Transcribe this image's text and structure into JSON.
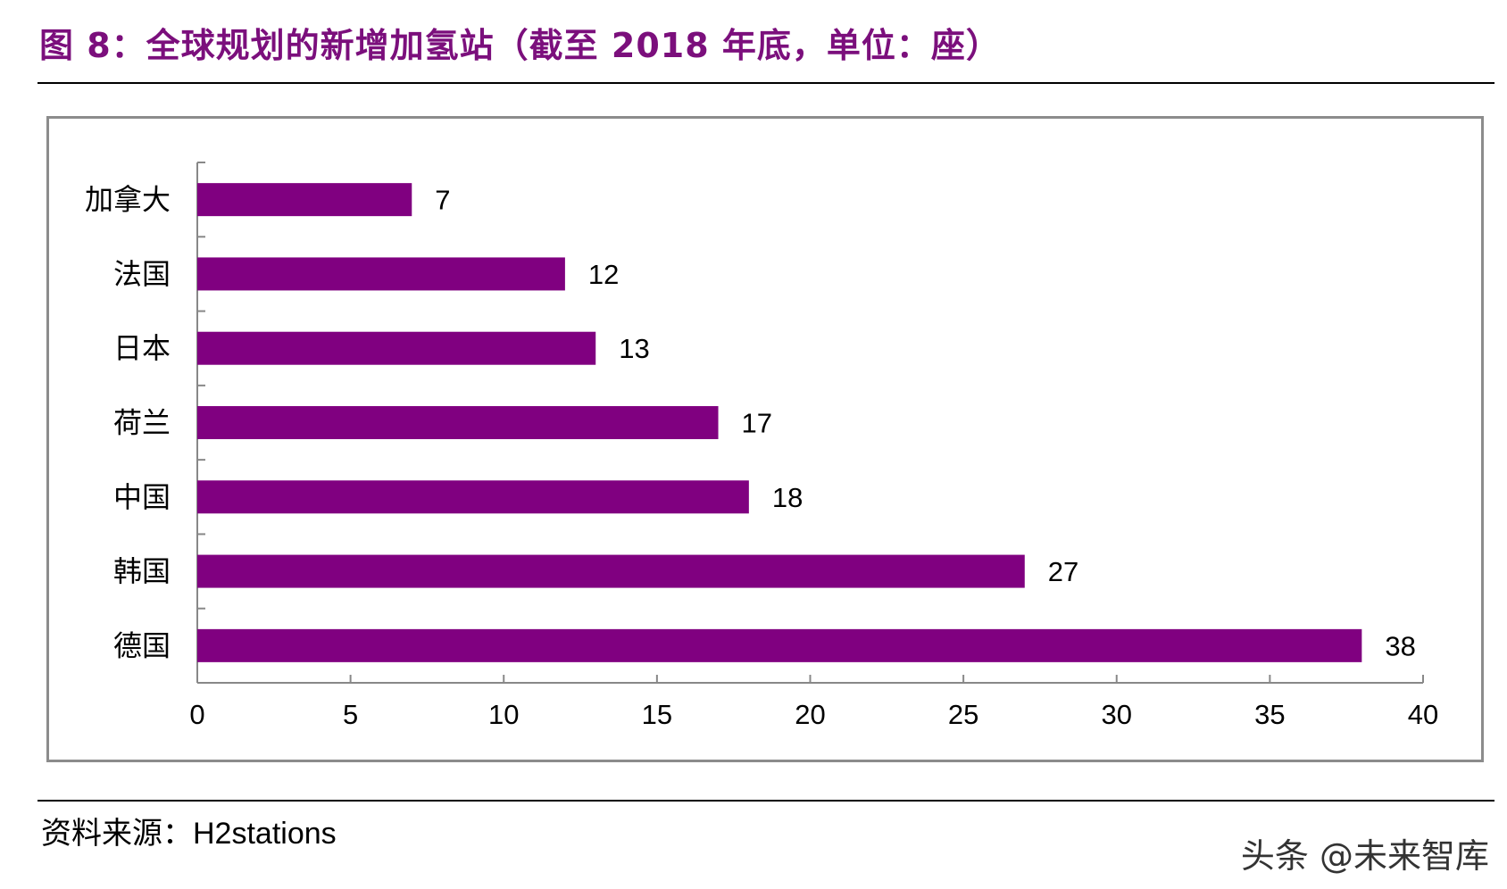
{
  "header": {
    "figure_title": "图 8：全球规划的新增加氢站（截至 2018 年底，单位：座）"
  },
  "chart_data": {
    "type": "bar",
    "orientation": "horizontal",
    "categories": [
      "加拿大",
      "法国",
      "日本",
      "荷兰",
      "中国",
      "韩国",
      "德国"
    ],
    "values": [
      7,
      12,
      13,
      17,
      18,
      27,
      38
    ],
    "data_labels": [
      "7",
      "12",
      "13",
      "17",
      "18",
      "27",
      "38"
    ],
    "title": "",
    "xlabel": "",
    "ylabel": "",
    "xlim": [
      0,
      40
    ],
    "x_ticks": [
      0,
      5,
      10,
      15,
      20,
      25,
      30,
      35,
      40
    ],
    "x_tick_labels": [
      "0",
      "5",
      "10",
      "15",
      "20",
      "25",
      "30",
      "35",
      "40"
    ],
    "grid": false,
    "legend": "none",
    "bar_color": "#800080"
  },
  "footer": {
    "source_label": "资料来源：",
    "source_value": "H2stations",
    "watermark": "头条 @未来智库"
  }
}
